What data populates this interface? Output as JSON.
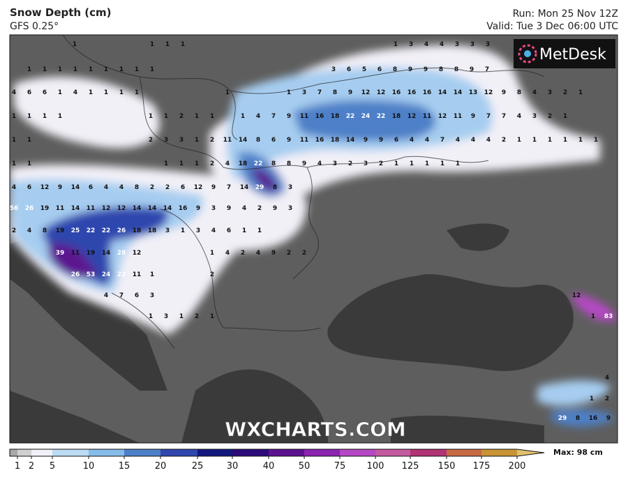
{
  "header": {
    "title": "Snow Depth (cm)",
    "model": "GFS 0.25°",
    "run": "Run: Mon 25 Nov 12Z",
    "valid": "Valid: Tue 3 Dec 06:00 UTC"
  },
  "logo": "MetDesk",
  "watermark": "WXCHARTS.COM",
  "max_label": "Max: 98 cm",
  "map_labels": [
    [
      1
    ],
    [
      1,
      1,
      1
    ],
    [
      1,
      3,
      4,
      4,
      3,
      3,
      3
    ],
    [
      1,
      1,
      1,
      1,
      1,
      1,
      1,
      1,
      1
    ],
    [
      3,
      6,
      5,
      6,
      8,
      9,
      9,
      8,
      8,
      9,
      7
    ],
    [
      4,
      6,
      6,
      1,
      4,
      1,
      1,
      1,
      1
    ],
    [
      1
    ],
    [
      1,
      3,
      7,
      8,
      9,
      12,
      12,
      16,
      16,
      16,
      14,
      14,
      13,
      12,
      9,
      8,
      4,
      3,
      2,
      1
    ],
    [
      1,
      1,
      1,
      1
    ],
    [
      1,
      1,
      2,
      1,
      1
    ],
    [
      1,
      4,
      7,
      9,
      11,
      16,
      18,
      22,
      24,
      22,
      18,
      12,
      11,
      12,
      11,
      9,
      7,
      7,
      4,
      3,
      2,
      1
    ],
    [
      1,
      1
    ],
    [
      2,
      3,
      3,
      1,
      2,
      11,
      14,
      8,
      6,
      9,
      11,
      16,
      18,
      14,
      9,
      9,
      6,
      4,
      4,
      7,
      4,
      4,
      4,
      2,
      1,
      1,
      1,
      1,
      1,
      1
    ],
    [
      1,
      1
    ],
    [
      1,
      1,
      1,
      2,
      4,
      18,
      22,
      8,
      8,
      9,
      4,
      3,
      2,
      3,
      2,
      1,
      1,
      1,
      1,
      1
    ],
    [
      4,
      6,
      12,
      9,
      14,
      6,
      4,
      4,
      8,
      2,
      2,
      6,
      12,
      9,
      7,
      14,
      29,
      8,
      3
    ],
    [
      56,
      26,
      19,
      11,
      14,
      11,
      12,
      12,
      14,
      14,
      14,
      16,
      9,
      3,
      9,
      4,
      2,
      9,
      3
    ],
    [
      2,
      4,
      8,
      19,
      25,
      22,
      22,
      26,
      18,
      18,
      3,
      1,
      3,
      4,
      6,
      1,
      1
    ],
    [
      39,
      11,
      19,
      14,
      28,
      12
    ],
    [
      1,
      4,
      2,
      4,
      9,
      2,
      2
    ],
    [
      26,
      53,
      24,
      22,
      11,
      1
    ],
    [
      2
    ],
    [
      4,
      7,
      6,
      3
    ],
    [
      12
    ],
    [
      1,
      3,
      1,
      2,
      1
    ],
    [
      1,
      83
    ],
    [
      4
    ],
    [
      1,
      2
    ],
    [
      29,
      8,
      16,
      9
    ]
  ],
  "colorbar": {
    "ticks": [
      1,
      2,
      5,
      10,
      15,
      20,
      25,
      30,
      40,
      50,
      75,
      100,
      125,
      150,
      175,
      200
    ],
    "colors": [
      "#a8a8a8",
      "#d0d0d0",
      "#f2f0f7",
      "#bcdcf4",
      "#86bce8",
      "#4d80c8",
      "#2f47ae",
      "#12187e",
      "#2c0a7a",
      "#5c1290",
      "#8c24b2",
      "#b548c4",
      "#c45aa0",
      "#b33474",
      "#c66a44",
      "#c89436",
      "#e0c070"
    ]
  }
}
